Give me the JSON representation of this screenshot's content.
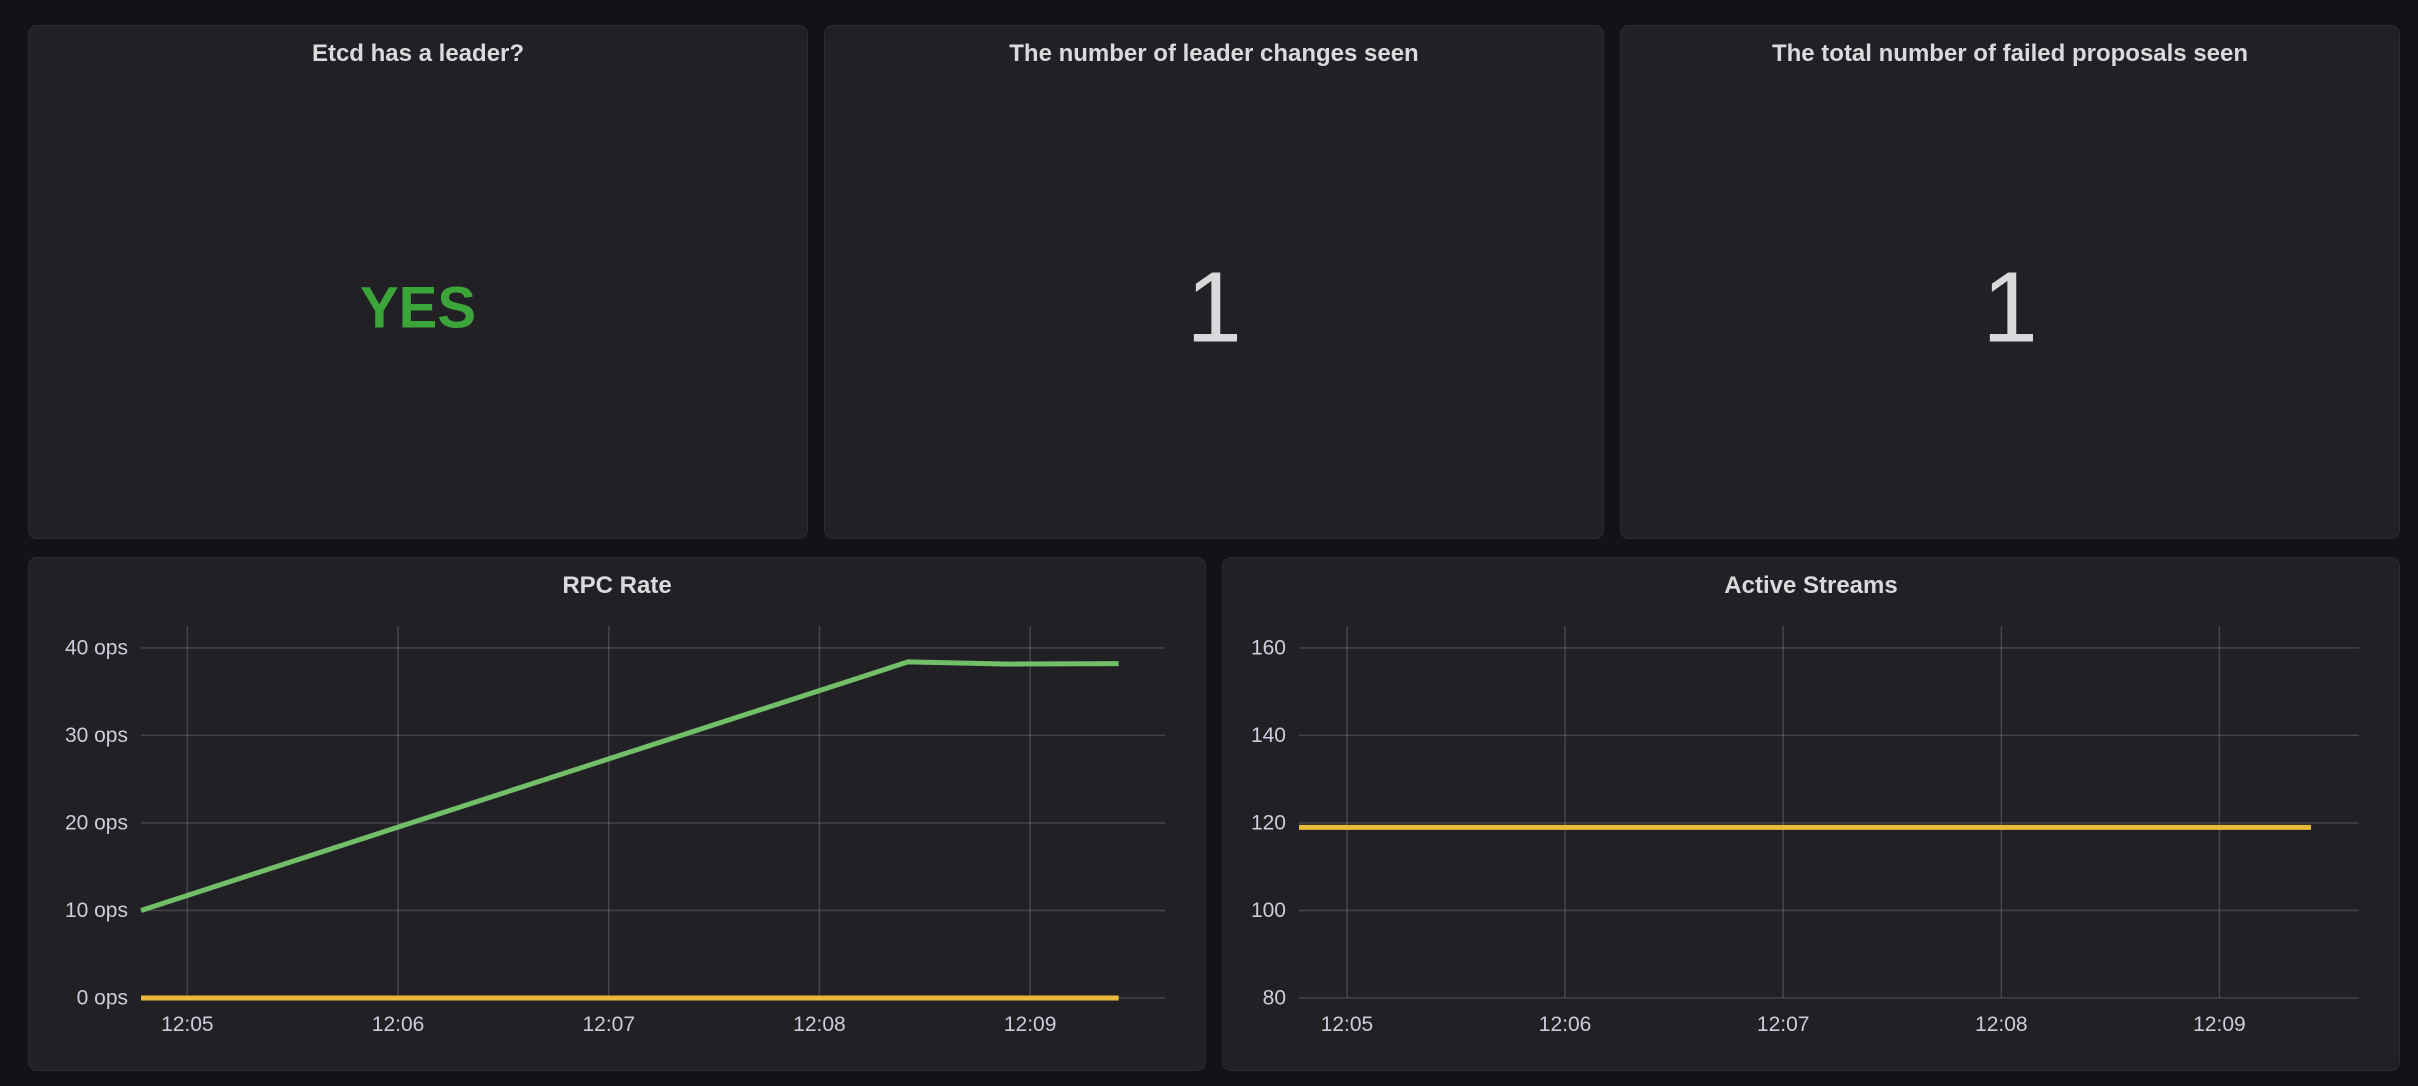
{
  "theme": {
    "page_bg": "#121318",
    "panel_bg": "#212125",
    "panel_border": "#2b2c30",
    "title_color": "#d9dadb",
    "tick_color": "#ccccdc",
    "grid_color": "rgba(204,204,220,0.20)",
    "stat_value_color": "#d8d9da",
    "stat_green": "#3ca53a"
  },
  "panels": {
    "leader": {
      "title": "Etcd has a leader?",
      "value": "YES",
      "value_color": "#3ca53a"
    },
    "leader_changes": {
      "title": "The number of leader changes seen",
      "value": "1",
      "value_color": "#d8d9da"
    },
    "failed_proposals": {
      "title": "The total number of failed proposals seen",
      "value": "1",
      "value_color": "#d8d9da"
    }
  },
  "chart_data": [
    {
      "type": "line",
      "title": "RPC Rate",
      "xlabel": "",
      "ylabel": "",
      "x_unit": "time (minutes after 12:00)",
      "y_unit": "ops",
      "x_ticks": [
        "12:05",
        "12:06",
        "12:07",
        "12:08",
        "12:09"
      ],
      "x_tick_values": [
        5,
        6,
        7,
        8,
        9
      ],
      "xlim": [
        4.78,
        9.64
      ],
      "y_ticks": [
        "0 ops",
        "10 ops",
        "20 ops",
        "30 ops",
        "40 ops"
      ],
      "y_tick_values": [
        0,
        10,
        20,
        30,
        40
      ],
      "ylim": [
        0,
        42.5
      ],
      "grid": true,
      "legend": "none",
      "series": [
        {
          "name": "green-series",
          "color": "#73BF69",
          "points": [
            [
              4.78,
              10
            ],
            [
              8.42,
              38.4
            ],
            [
              8.9,
              38.15
            ],
            [
              9.42,
              38.2
            ]
          ]
        },
        {
          "name": "yellow-series",
          "color": "#EAB839",
          "points": [
            [
              4.78,
              0
            ],
            [
              9.42,
              0
            ]
          ]
        }
      ]
    },
    {
      "type": "line",
      "title": "Active Streams",
      "xlabel": "",
      "ylabel": "",
      "x_unit": "time (minutes after 12:00)",
      "x_ticks": [
        "12:05",
        "12:06",
        "12:07",
        "12:08",
        "12:09"
      ],
      "x_tick_values": [
        5,
        6,
        7,
        8,
        9
      ],
      "xlim": [
        4.78,
        9.64
      ],
      "y_ticks": [
        "80",
        "100",
        "120",
        "140",
        "160"
      ],
      "y_tick_values": [
        80,
        100,
        120,
        140,
        160
      ],
      "ylim": [
        80,
        165
      ],
      "grid": true,
      "legend": "none",
      "series": [
        {
          "name": "yellow-series",
          "color": "#EAB839",
          "points": [
            [
              4.78,
              119
            ],
            [
              9.42,
              119
            ]
          ]
        }
      ]
    }
  ]
}
